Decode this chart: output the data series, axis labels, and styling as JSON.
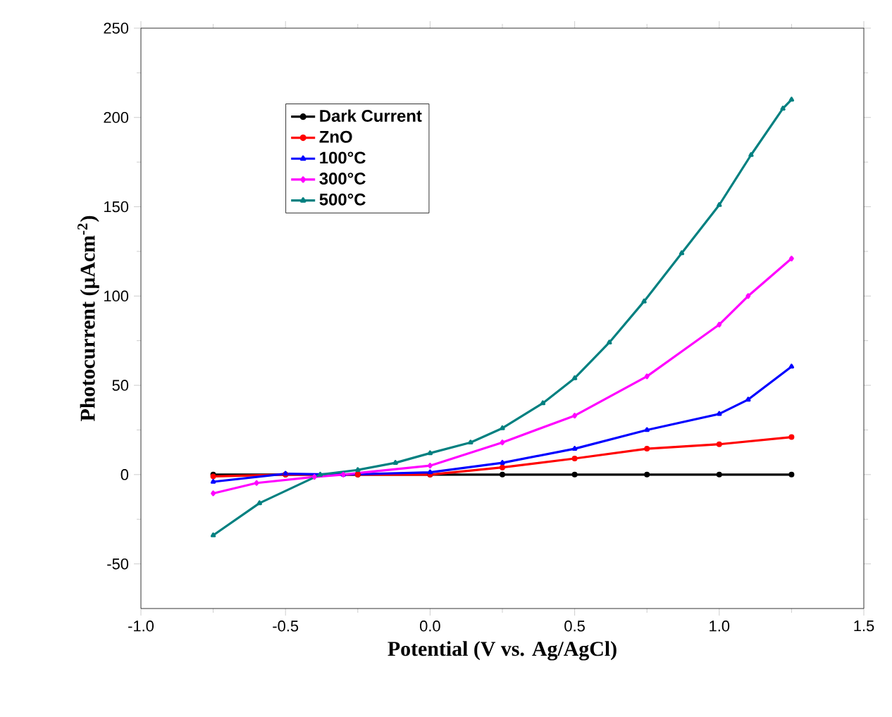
{
  "chart_data": {
    "type": "line",
    "xlabel": "Potential (V vs. Ag/AgCl)",
    "ylabel": "Photocurrent (μAcm$^{-2}$)",
    "xlim": [
      -1.0,
      1.5
    ],
    "xticks": [
      {
        "value": -1.0,
        "label": "-1.0"
      },
      {
        "value": -0.5,
        "label": "-0.5"
      },
      {
        "value": 0.0,
        "label": "0.0"
      },
      {
        "value": 0.5,
        "label": "0.5"
      },
      {
        "value": 1.0,
        "label": "1.0"
      },
      {
        "value": 1.5,
        "label": "1.5"
      }
    ],
    "ylim": [
      -75,
      250
    ],
    "yticks": [
      -50,
      0,
      50,
      100,
      150,
      200,
      250
    ],
    "legend": "top left",
    "series": [
      {
        "name": "Dark Current",
        "color": "#000000",
        "marker": "circle",
        "x": [
          -0.75,
          -0.5,
          -0.25,
          0,
          0.25,
          0.5,
          0.75,
          1.0,
          1.25
        ],
        "values": [
          0,
          0,
          0,
          0,
          0,
          0,
          0,
          0,
          0
        ]
      },
      {
        "name": "ZnO",
        "color": "#ff0000",
        "marker": "circle",
        "x": [
          -0.75,
          -0.5,
          -0.25,
          0,
          0.25,
          0.5,
          0.75,
          1.0,
          1.25
        ],
        "values": [
          -1,
          0,
          0,
          0,
          4,
          9,
          14.5,
          17,
          21
        ]
      },
      {
        "name": "100°C",
        "color": "#0000ff",
        "marker": "triangle",
        "x": [
          -0.75,
          -0.5,
          -0.3,
          0,
          0.25,
          0.5,
          0.75,
          1.0,
          1.1,
          1.25
        ],
        "values": [
          -4,
          0.5,
          0,
          1.3,
          6.6,
          14.5,
          25,
          34,
          42,
          60.5
        ]
      },
      {
        "name": "300°C",
        "color": "#ff00ff",
        "marker": "diamond",
        "x": [
          -0.75,
          -0.6,
          -0.4,
          -0.3,
          0,
          0.25,
          0.5,
          0.75,
          1.0,
          1.1,
          1.25
        ],
        "values": [
          -10.5,
          -4.7,
          -1.3,
          0,
          5,
          18,
          33,
          55,
          84,
          100,
          121
        ]
      },
      {
        "name": "500°C",
        "color": "#008080",
        "marker": "triangle",
        "x": [
          -0.75,
          -0.59,
          -0.38,
          -0.25,
          -0.12,
          0,
          0.14,
          0.25,
          0.39,
          0.5,
          0.62,
          0.74,
          0.87,
          1.0,
          1.11,
          1.22,
          1.25
        ],
        "values": [
          -34,
          -16,
          0,
          2.6,
          6.6,
          12,
          18,
          26,
          40,
          54,
          74,
          97,
          124,
          151,
          179,
          205,
          210
        ]
      }
    ]
  }
}
